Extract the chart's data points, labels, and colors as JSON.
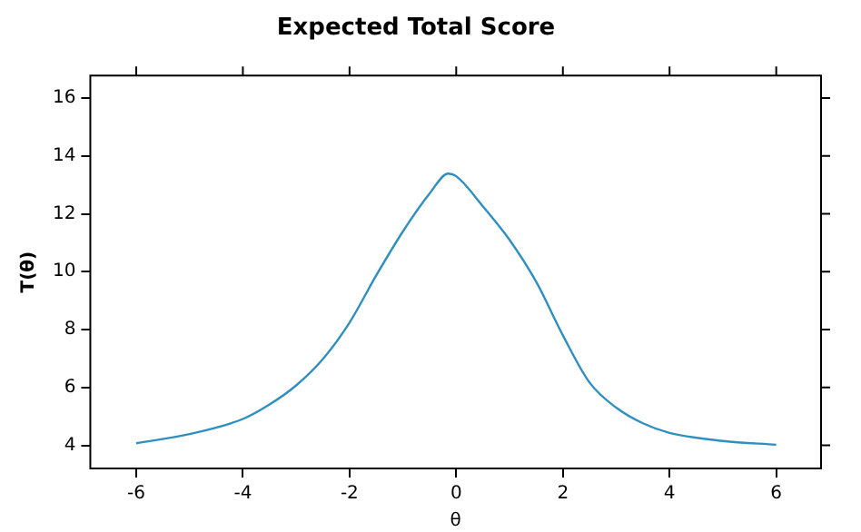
{
  "chart_data": {
    "type": "line",
    "title": "Expected Total Score",
    "xlabel": "θ",
    "ylabel": "T(θ)",
    "x": [
      -6,
      -5,
      -4,
      -3.5,
      -3,
      -2.5,
      -2,
      -1.5,
      -1,
      -0.5,
      -0.15,
      0,
      0.5,
      1,
      1.5,
      2,
      2.5,
      3,
      3.5,
      4,
      5,
      6
    ],
    "series": [
      {
        "color": "#2e8fc0",
        "values": [
          4.07,
          4.39,
          4.91,
          5.41,
          6.07,
          6.98,
          8.24,
          9.87,
          11.39,
          12.7,
          13.39,
          13.3,
          12.26,
          11.1,
          9.65,
          7.8,
          6.17,
          5.3,
          4.76,
          4.43,
          4.15,
          4.02
        ]
      }
    ],
    "xlim": [
      -6.86,
      6.84
    ],
    "ylim": [
      3.2,
      16.78
    ],
    "xticks": [
      -6,
      -4,
      -2,
      0,
      2,
      4,
      6
    ],
    "yticks": [
      4,
      6,
      8,
      10,
      12,
      14,
      16
    ],
    "grid": false,
    "legend": false,
    "marker": "none",
    "line_style": "solid"
  }
}
